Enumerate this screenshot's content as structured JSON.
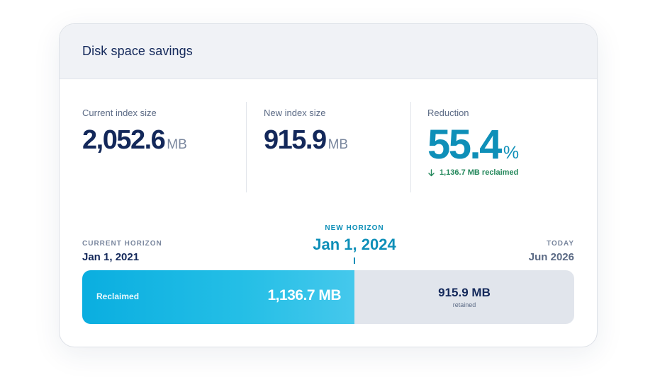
{
  "card": {
    "title": "Disk space savings"
  },
  "stats": {
    "current": {
      "label": "Current index size",
      "value": "2,052.6",
      "unit": "MB"
    },
    "new": {
      "label": "New index size",
      "value": "915.9",
      "unit": "MB"
    },
    "reduction": {
      "label": "Reduction",
      "value": "55.4",
      "unit": "%",
      "note": "1,136.7 MB reclaimed",
      "note_icon": "arrow-down-icon"
    }
  },
  "timeline": {
    "current_horizon": {
      "label": "CURRENT HORIZON",
      "date": "Jan 1, 2021"
    },
    "new_horizon": {
      "label": "NEW HORIZON",
      "date": "Jan 1, 2024"
    },
    "today": {
      "label": "TODAY",
      "date": "Jun 2026"
    },
    "bar": {
      "reclaimed_fraction": 0.554,
      "reclaimed_label": "Reclaimed",
      "reclaimed_value": "1,136.7 MB",
      "retained_value": "915.9 MB",
      "retained_sub": "retained"
    }
  },
  "colors": {
    "accent": "#0e8fb8",
    "navy": "#13285a",
    "positive": "#22875a"
  }
}
